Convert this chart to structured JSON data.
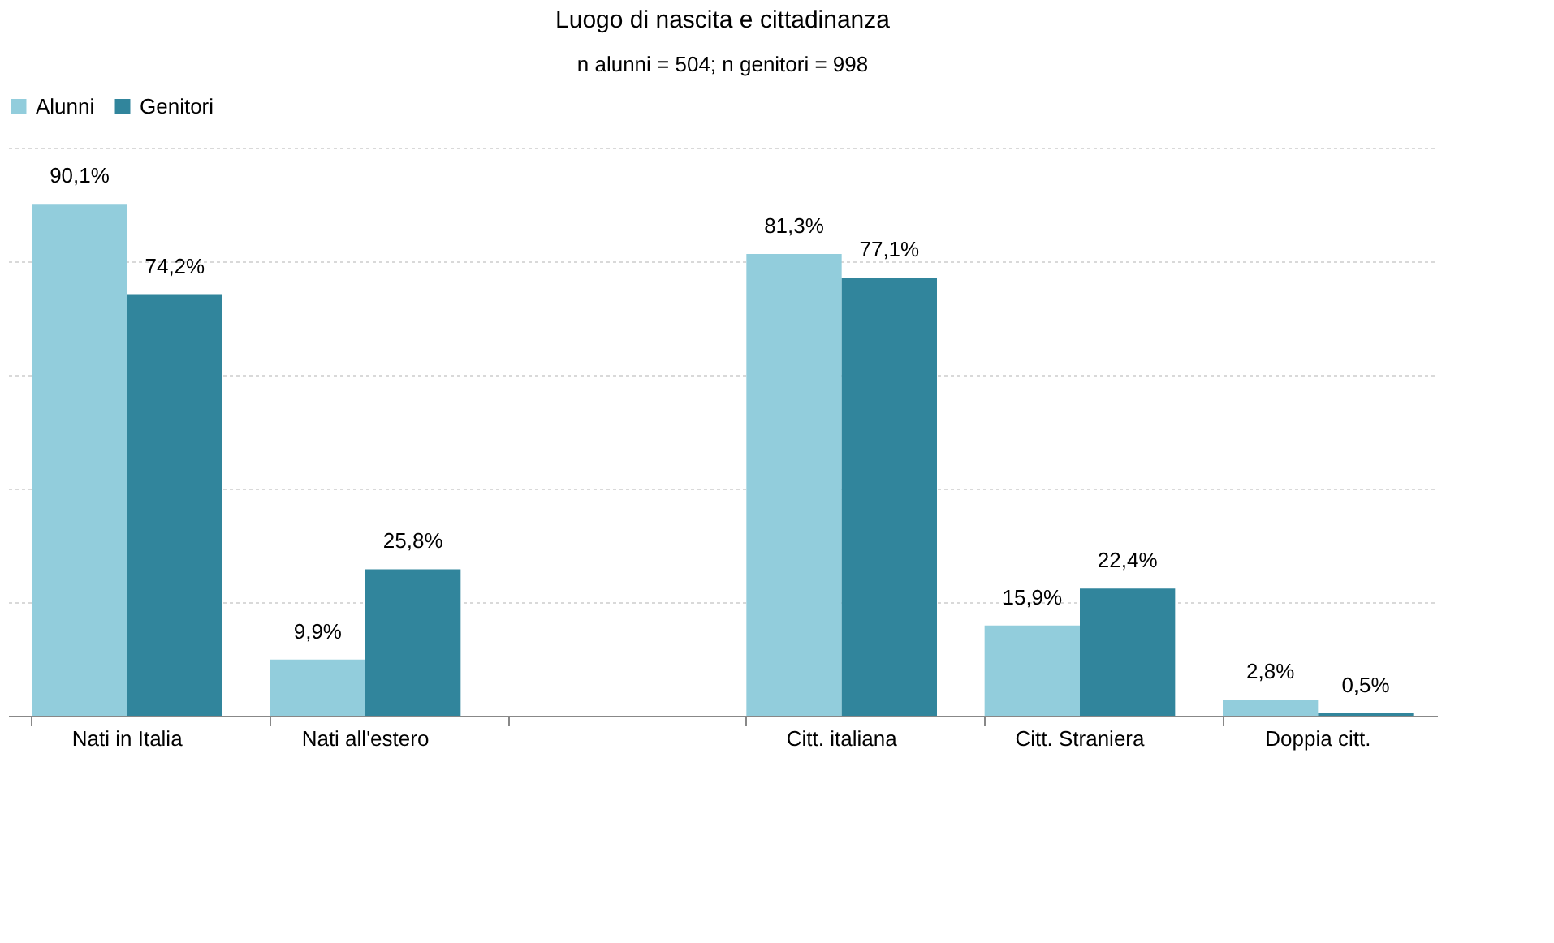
{
  "chart_data": {
    "type": "bar",
    "title": "Luogo di nascita e cittadinanza",
    "subtitle": "n alunni = 504; n genitori = 998",
    "categories": [
      "Nati in Italia",
      "Nati all'estero",
      null,
      "Citt. italiana",
      "Citt. Straniera",
      "Doppia citt."
    ],
    "series": [
      {
        "name": "Alunni",
        "color": "#92cddc",
        "values": [
          90.1,
          9.9,
          null,
          81.3,
          15.9,
          2.8
        ],
        "value_labels": [
          "90,1%",
          "9,9%",
          null,
          "81,3%",
          "15,9%",
          "2,8%"
        ]
      },
      {
        "name": "Genitori",
        "color": "#31859c",
        "values": [
          74.2,
          25.8,
          null,
          77.1,
          22.4,
          0.5
        ],
        "value_labels": [
          "74,2%",
          "25,8%",
          null,
          "77,1%",
          "22,4%",
          "0,5%"
        ]
      }
    ],
    "ylim": [
      0,
      100
    ],
    "yticks": [
      {
        "value": 0,
        "label": null
      },
      {
        "value": 20,
        "label": null
      },
      {
        "value": 40,
        "label": null
      },
      {
        "value": 60,
        "label": null
      },
      {
        "value": 80,
        "label": null
      },
      {
        "value": 100,
        "label": null
      }
    ],
    "grid": "y",
    "legend": "top",
    "tick_labels": "x"
  }
}
